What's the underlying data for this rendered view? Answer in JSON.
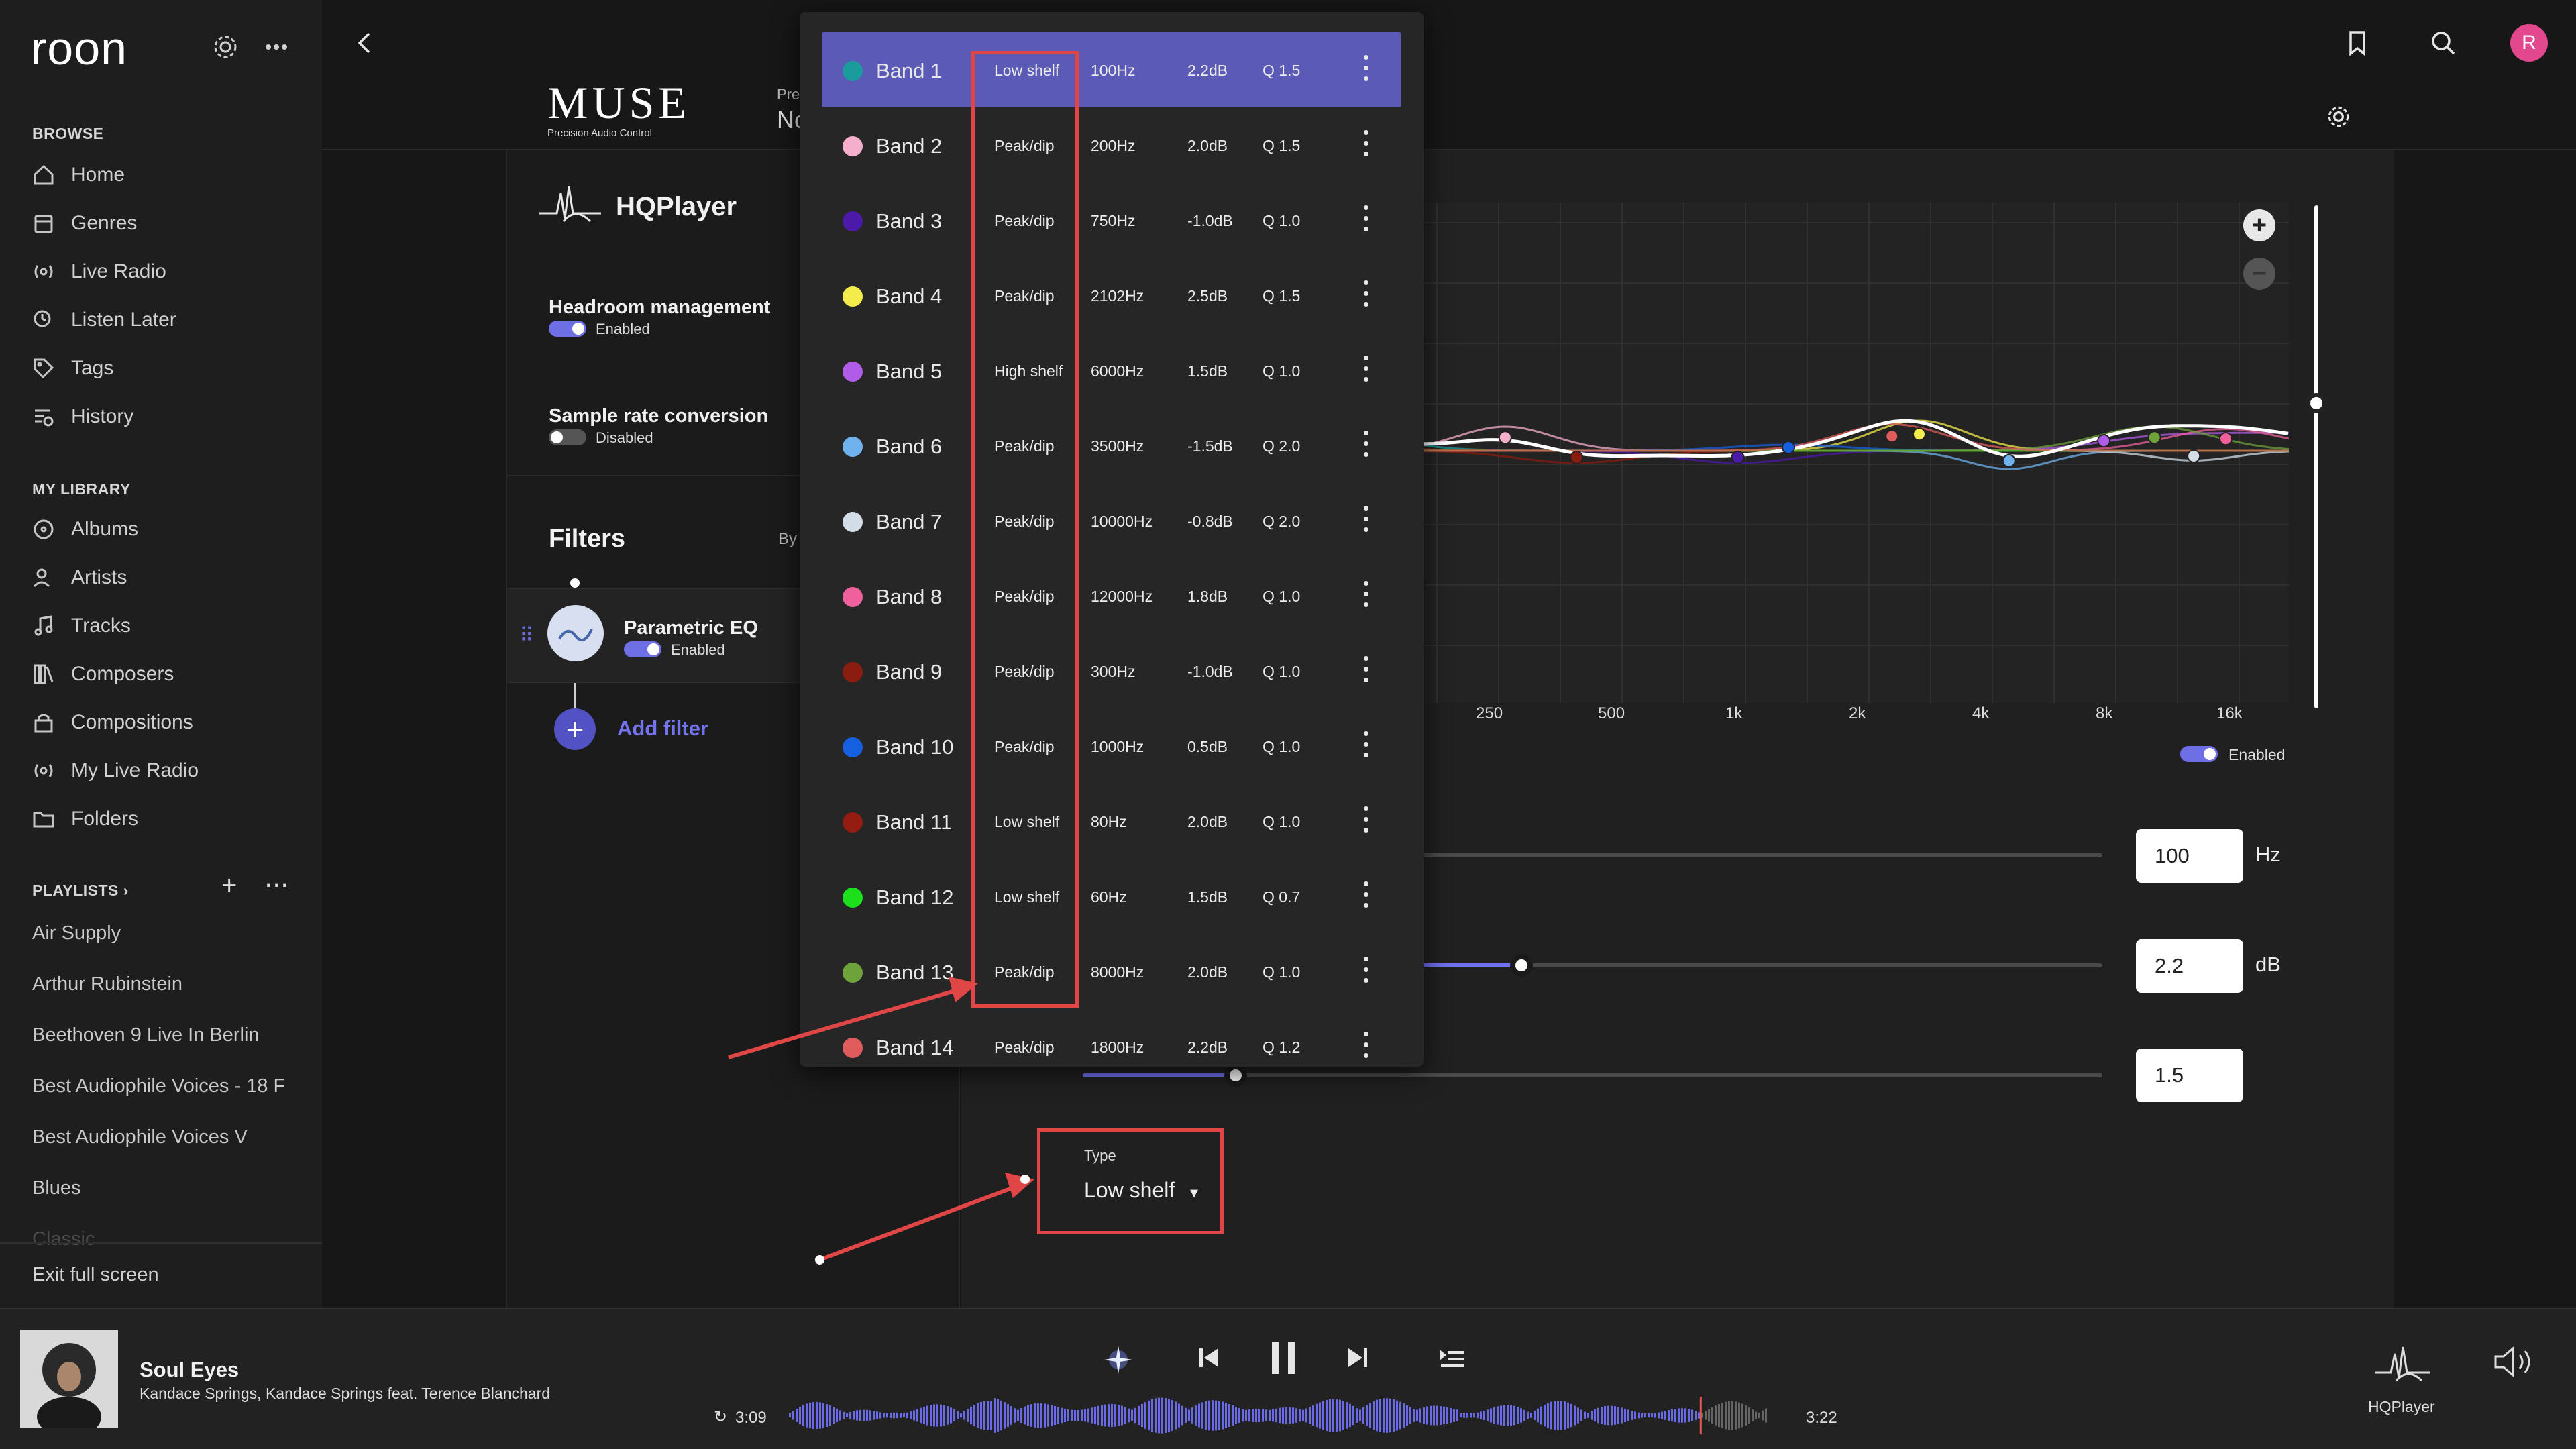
{
  "sidebar": {
    "logo": "roon",
    "browse_heading": "BROWSE",
    "browse_items": [
      {
        "label": "Home",
        "icon": "home-icon"
      },
      {
        "label": "Genres",
        "icon": "genres-icon"
      },
      {
        "label": "Live Radio",
        "icon": "radio-icon"
      },
      {
        "label": "Listen Later",
        "icon": "listen-later-icon"
      },
      {
        "label": "Tags",
        "icon": "tag-icon"
      },
      {
        "label": "History",
        "icon": "history-icon"
      }
    ],
    "library_heading": "MY LIBRARY",
    "library_items": [
      {
        "label": "Albums",
        "icon": "album-icon"
      },
      {
        "label": "Artists",
        "icon": "artist-icon"
      },
      {
        "label": "Tracks",
        "icon": "music-note-icon"
      },
      {
        "label": "Composers",
        "icon": "composers-icon"
      },
      {
        "label": "Compositions",
        "icon": "compositions-icon"
      },
      {
        "label": "My Live Radio",
        "icon": "radio-icon"
      },
      {
        "label": "Folders",
        "icon": "folder-icon"
      }
    ],
    "playlists_heading": "PLAYLISTS",
    "playlists": [
      "Air Supply",
      "Arthur Rubinstein",
      "Beethoven 9 Live In Berlin",
      "Best Audiophile Voices - 18 F",
      "Best Audiophile Voices V",
      "Blues",
      "Classic"
    ],
    "exit_fullscreen": "Exit full screen"
  },
  "header": {
    "brand": "MUSE",
    "brand_sub": "Precision Audio Control",
    "preset_label": "Pre",
    "preset_value": "No"
  },
  "dsp": {
    "device_name": "HQPlayer",
    "headroom": {
      "title": "Headroom management",
      "status": "Enabled"
    },
    "src": {
      "title": "Sample rate conversion",
      "status": "Disabled"
    },
    "filters_title": "Filters",
    "filters_by": "By",
    "peq": {
      "title": "Parametric EQ",
      "status": "Enabled"
    },
    "add_filter": "Add filter"
  },
  "plot": {
    "x_ticks": [
      "250",
      "500",
      "1k",
      "2k",
      "4k",
      "8k",
      "16k"
    ],
    "enabled_label": "Enabled"
  },
  "editor": {
    "freq_value": "100",
    "freq_unit": "Hz",
    "gain_value": "2.2",
    "gain_unit": "dB",
    "gain_fill": 0.43,
    "q_value": "1.5",
    "q_fill": 0.15,
    "type_label": "Type",
    "type_value": "Low shelf"
  },
  "bands": [
    {
      "name": "Band 1",
      "color": "#1a9c9c",
      "type": "Low shelf",
      "freq": "100Hz",
      "gain": "2.2dB",
      "q": "Q 1.5",
      "selected": true
    },
    {
      "name": "Band 2",
      "color": "#f5aecb",
      "type": "Peak/dip",
      "freq": "200Hz",
      "gain": "2.0dB",
      "q": "Q 1.5"
    },
    {
      "name": "Band 3",
      "color": "#4b1aa8",
      "type": "Peak/dip",
      "freq": "750Hz",
      "gain": "-1.0dB",
      "q": "Q 1.0"
    },
    {
      "name": "Band 4",
      "color": "#f4ec4a",
      "type": "Peak/dip",
      "freq": "2102Hz",
      "gain": "2.5dB",
      "q": "Q 1.5"
    },
    {
      "name": "Band 5",
      "color": "#b05ce8",
      "type": "High shelf",
      "freq": "6000Hz",
      "gain": "1.5dB",
      "q": "Q 1.0"
    },
    {
      "name": "Band 6",
      "color": "#6fb2ee",
      "type": "Peak/dip",
      "freq": "3500Hz",
      "gain": "-1.5dB",
      "q": "Q 2.0"
    },
    {
      "name": "Band 7",
      "color": "#d3dde8",
      "type": "Peak/dip",
      "freq": "10000Hz",
      "gain": "-0.8dB",
      "q": "Q 2.0"
    },
    {
      "name": "Band 8",
      "color": "#f0609c",
      "type": "Peak/dip",
      "freq": "12000Hz",
      "gain": "1.8dB",
      "q": "Q 1.0"
    },
    {
      "name": "Band 9",
      "color": "#8a1c10",
      "type": "Peak/dip",
      "freq": "300Hz",
      "gain": "-1.0dB",
      "q": "Q 1.0"
    },
    {
      "name": "Band 10",
      "color": "#1560e0",
      "type": "Peak/dip",
      "freq": "1000Hz",
      "gain": "0.5dB",
      "q": "Q 1.0"
    },
    {
      "name": "Band 11",
      "color": "#951c10",
      "type": "Low shelf",
      "freq": "80Hz",
      "gain": "2.0dB",
      "q": "Q 1.0"
    },
    {
      "name": "Band 12",
      "color": "#1ce01c",
      "type": "Low shelf",
      "freq": "60Hz",
      "gain": "1.5dB",
      "q": "Q 0.7"
    },
    {
      "name": "Band 13",
      "color": "#6ea23a",
      "type": "Peak/dip",
      "freq": "8000Hz",
      "gain": "2.0dB",
      "q": "Q 1.0"
    },
    {
      "name": "Band 14",
      "color": "#e05b5b",
      "type": "Peak/dip",
      "freq": "1800Hz",
      "gain": "2.2dB",
      "q": "Q 1.2"
    }
  ],
  "player": {
    "song": "Soul Eyes",
    "artist": "Kandace Springs, Kandace Springs feat. Terence Blanchard",
    "elapsed": "3:09",
    "total": "3:22",
    "progress": 0.93,
    "zone": "HQPlayer"
  },
  "profile": {
    "initial": "R",
    "color": "#e3488f"
  }
}
